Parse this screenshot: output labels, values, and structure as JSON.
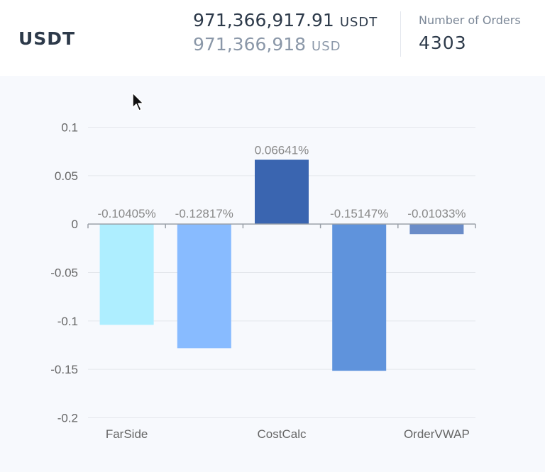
{
  "header": {
    "asset": "USDT",
    "amount_primary": {
      "value": "971,366,917.91",
      "unit": "USDT"
    },
    "amount_secondary": {
      "value": "971,366,918",
      "unit": "USD"
    },
    "orders_label": "Number of Orders",
    "orders_value": "4303"
  },
  "chart_data": {
    "type": "bar",
    "title": "",
    "xlabel": "",
    "ylabel": "",
    "categories": [
      "FarSide",
      "",
      "CostCalc",
      "",
      "OrderVWAP"
    ],
    "values": [
      -0.10405,
      -0.12817,
      0.06641,
      -0.15147,
      -0.01033
    ],
    "data_labels": [
      "-0.10405%",
      "-0.12817%",
      "0.06641%",
      "-0.15147%",
      "-0.01033%"
    ],
    "bar_colors": [
      "#aeeeff",
      "#88bbff",
      "#3a65b0",
      "#5f93dc",
      "#6a8cc8"
    ],
    "yticks": [
      0.1,
      0.05,
      0,
      -0.05,
      -0.1,
      -0.15,
      -0.2
    ],
    "ytick_labels": [
      "0.1",
      "0.05",
      "0",
      "-0.05",
      "-0.1",
      "-0.15",
      "-0.2"
    ],
    "ylim": [
      -0.2,
      0.1
    ],
    "grid": true,
    "legend": "none"
  },
  "colors": {
    "text_dark": "#2d3a4a",
    "text_muted": "#8a97a8",
    "axis": "#9aa0a8",
    "grid": "#e4e7ec",
    "tick_text": "#666666",
    "label_text": "#888888"
  }
}
